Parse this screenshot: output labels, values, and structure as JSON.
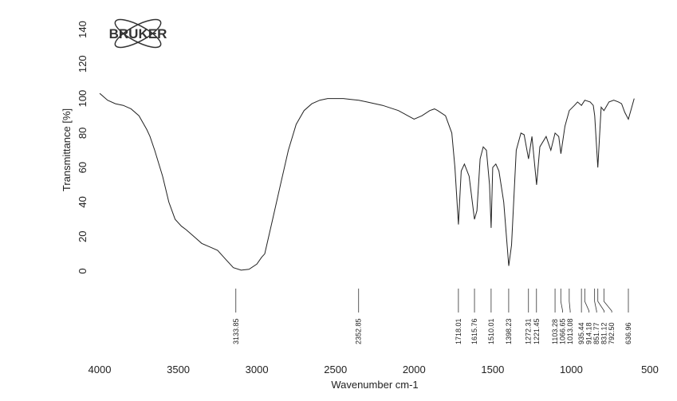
{
  "chart_data": {
    "type": "line",
    "logo": "BRUKER",
    "xlabel": "Wavenumber cm-1",
    "ylabel": "Transmittance [%]",
    "xlim": [
      4000,
      500
    ],
    "xticks": [
      4000,
      3500,
      3000,
      2500,
      2000,
      1500,
      1000,
      500
    ],
    "ylim": [
      0,
      140
    ],
    "yticks": [
      0,
      20,
      40,
      60,
      80,
      100,
      120,
      140
    ],
    "color": "#222222",
    "x": [
      4000,
      3950,
      3900,
      3850,
      3800,
      3750,
      3700,
      3680,
      3650,
      3600,
      3560,
      3520,
      3480,
      3450,
      3400,
      3350,
      3300,
      3250,
      3200,
      3150,
      3100,
      3050,
      3000,
      2970,
      2950,
      2900,
      2850,
      2800,
      2750,
      2700,
      2650,
      2600,
      2550,
      2500,
      2450,
      2400,
      2352,
      2300,
      2200,
      2100,
      2000,
      1950,
      1900,
      1870,
      1850,
      1800,
      1760,
      1740,
      1718,
      1700,
      1680,
      1650,
      1616,
      1600,
      1580,
      1560,
      1540,
      1520,
      1510,
      1500,
      1480,
      1460,
      1430,
      1398,
      1380,
      1350,
      1320,
      1300,
      1272,
      1250,
      1221,
      1200,
      1160,
      1130,
      1103,
      1080,
      1066,
      1040,
      1013,
      980,
      960,
      935,
      914,
      880,
      860,
      851,
      831,
      810,
      792,
      760,
      730,
      700,
      680,
      660,
      637,
      615,
      600
    ],
    "values": [
      103,
      99,
      97,
      96,
      94,
      90,
      82,
      78,
      70,
      55,
      40,
      30,
      26,
      24,
      20,
      16,
      14,
      12,
      7,
      2,
      0.5,
      1,
      4,
      8,
      10,
      30,
      50,
      70,
      85,
      93,
      97,
      99,
      100,
      100,
      100,
      99.5,
      99,
      98,
      96,
      93,
      88,
      90,
      93,
      94,
      93,
      90,
      80,
      60,
      27,
      58,
      62,
      55,
      30,
      35,
      65,
      72,
      70,
      50,
      25,
      60,
      62,
      58,
      40,
      3,
      15,
      70,
      80,
      79,
      65,
      78,
      50,
      72,
      78,
      70,
      80,
      78,
      68,
      84,
      93,
      96,
      98,
      96,
      99,
      98,
      96,
      90,
      60,
      95,
      93,
      98,
      99,
      98,
      97,
      92,
      88,
      95,
      100
    ],
    "peaks": [
      3133.85,
      2352.85,
      1718.01,
      1615.76,
      1510.01,
      1398.23,
      1272.31,
      1221.45,
      1103.28,
      1066.65,
      1013.08,
      935.44,
      914.18,
      851.77,
      831.12,
      792.5,
      636.96
    ],
    "peak_labels": [
      "3133.85",
      "2352.85",
      "1718.01",
      "1615.76",
      "1510.01",
      "1398.23",
      "1272.31",
      "1221.45",
      "1103.28",
      "1066.65",
      "1013.08",
      "935.44",
      "914.18",
      "851.77",
      "831.12",
      "792.50",
      "636.96"
    ]
  }
}
